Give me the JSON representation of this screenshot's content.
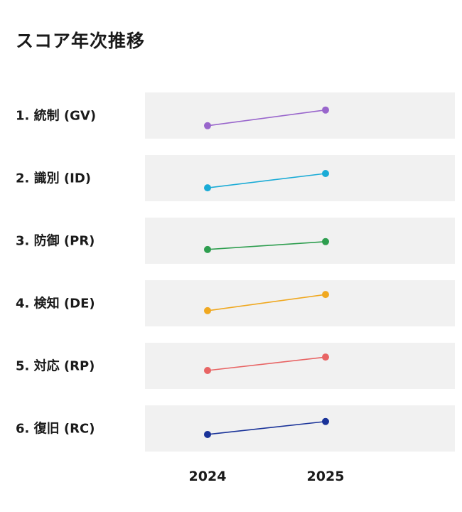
{
  "chart_data": {
    "type": "line",
    "title": "スコア年次推移",
    "x": [
      "2024",
      "2025"
    ],
    "xlabel": "",
    "ylabel": "",
    "ylim": [
      0,
      1
    ],
    "grid": false,
    "series": [
      {
        "name": "1. 統制 (GV)",
        "color": "#9966cc",
        "values": [
          0.28,
          0.62
        ]
      },
      {
        "name": "2. 識別 (ID)",
        "color": "#1aabd6",
        "values": [
          0.29,
          0.6
        ]
      },
      {
        "name": "3. 防御 (PR)",
        "color": "#2e9e4f",
        "values": [
          0.31,
          0.48
        ]
      },
      {
        "name": "4. 検知 (DE)",
        "color": "#f0a820",
        "values": [
          0.34,
          0.69
        ]
      },
      {
        "name": "5. 対応 (RP)",
        "color": "#e86464",
        "values": [
          0.4,
          0.69
        ]
      },
      {
        "name": "6. 復旧 (RC)",
        "color": "#1a3399",
        "values": [
          0.37,
          0.65
        ]
      }
    ]
  }
}
